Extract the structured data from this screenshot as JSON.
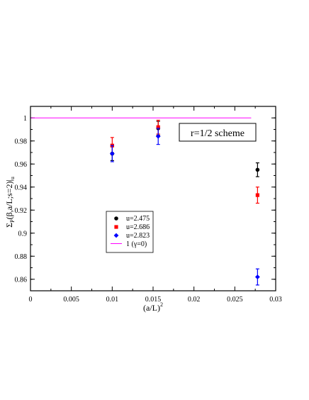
{
  "chart_data": {
    "type": "scatter",
    "xlabel": "(a/L)",
    "xlabel_sup": "2",
    "ylabel": "Σ",
    "ylabel_sub": "P",
    "ylabel_rest": "(β,a/L;s=2)|",
    "ylabel_sub2": "u",
    "xlim": [
      0,
      0.03
    ],
    "ylim": [
      0.85,
      1.01
    ],
    "xticks": [
      0,
      0.005,
      0.01,
      0.015,
      0.02,
      0.025,
      0.03
    ],
    "xtick_labels": [
      "0",
      "0.005",
      "0.01",
      "0.015",
      "0.02",
      "0.025",
      "0.03"
    ],
    "yticks": [
      0.86,
      0.88,
      0.9,
      0.92,
      0.94,
      0.96,
      0.98,
      1.0
    ],
    "ytick_labels": [
      "0.86",
      "0.88",
      "0.9",
      "0.92",
      "0.94",
      "0.96",
      "0.98",
      "1"
    ],
    "annotation": "r=1/2 scheme",
    "legend_position": "lower-center",
    "series": [
      {
        "name": "u=2.475",
        "color": "#000000",
        "marker": "circle",
        "points": [
          {
            "x": 0.01,
            "y": 0.969,
            "err": 0.006
          },
          {
            "x": 0.015625,
            "y": 0.991,
            "err": 0.006
          },
          {
            "x": 0.027778,
            "y": 0.955,
            "err": 0.006
          }
        ]
      },
      {
        "name": "u=2.686",
        "color": "#ff0000",
        "marker": "square",
        "points": [
          {
            "x": 0.01,
            "y": 0.976,
            "err": 0.007
          },
          {
            "x": 0.015625,
            "y": 0.992,
            "err": 0.006
          },
          {
            "x": 0.027778,
            "y": 0.933,
            "err": 0.007
          }
        ]
      },
      {
        "name": "u=2.823",
        "color": "#0000ff",
        "marker": "diamond",
        "points": [
          {
            "x": 0.01,
            "y": 0.969,
            "err": 0.007
          },
          {
            "x": 0.015625,
            "y": 0.984,
            "err": 0.007
          },
          {
            "x": 0.027778,
            "y": 0.862,
            "err": 0.007
          }
        ]
      }
    ],
    "reference_line": {
      "name": "1 (γ=0)",
      "color": "#ff00ff",
      "y": 1.0,
      "x_from": 0,
      "x_to": 0.027
    }
  }
}
